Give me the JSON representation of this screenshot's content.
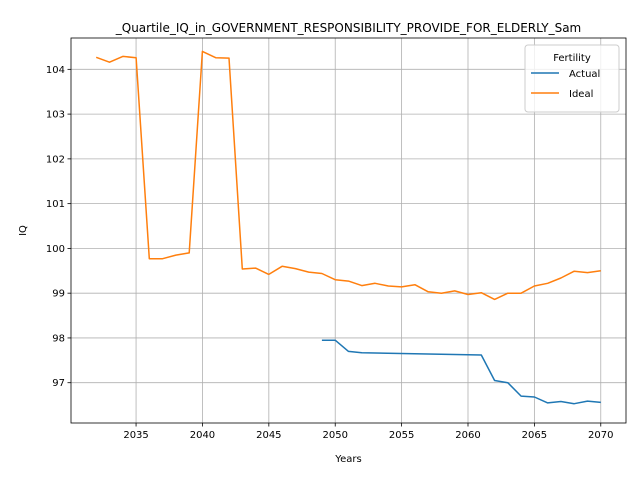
{
  "chart_data": {
    "type": "line",
    "title": "_Quartile_IQ_in_GOVERNMENT_RESPONSIBILITY_PROVIDE_FOR_ELDERLY_Sam",
    "xlabel": "Years",
    "ylabel": "IQ",
    "xlim": [
      2030.1,
      2071.9
    ],
    "ylim": [
      96.1,
      104.7
    ],
    "xticks": [
      2035,
      2040,
      2045,
      2050,
      2055,
      2060,
      2065,
      2070
    ],
    "yticks": [
      97,
      98,
      99,
      100,
      101,
      102,
      103,
      104
    ],
    "grid": true,
    "legend": {
      "title": "Fertility",
      "position": "top-right"
    },
    "series": [
      {
        "name": "Actual",
        "color": "#1f77b4",
        "x": [
          2049,
          2050,
          2051,
          2052,
          2061,
          2062,
          2063,
          2064,
          2065,
          2066,
          2067,
          2068,
          2069,
          2070
        ],
        "y": [
          97.95,
          97.95,
          97.7,
          97.67,
          97.62,
          97.05,
          97.0,
          96.7,
          96.68,
          96.55,
          96.58,
          96.53,
          96.59,
          96.56
        ]
      },
      {
        "name": "Ideal",
        "color": "#ff7f0e",
        "x": [
          2032,
          2033,
          2034,
          2035,
          2036,
          2037,
          2038,
          2039,
          2040,
          2041,
          2042,
          2043,
          2044,
          2045,
          2046,
          2047,
          2048,
          2049,
          2050,
          2051,
          2052,
          2053,
          2054,
          2055,
          2056,
          2057,
          2058,
          2059,
          2060,
          2061,
          2062,
          2063,
          2064,
          2065,
          2066,
          2067,
          2068,
          2069,
          2070
        ],
        "y": [
          104.27,
          104.16,
          104.29,
          104.26,
          99.77,
          99.77,
          99.85,
          99.9,
          104.4,
          104.26,
          104.25,
          99.54,
          99.56,
          99.42,
          99.6,
          99.55,
          99.47,
          99.44,
          99.3,
          99.27,
          99.17,
          99.22,
          99.16,
          99.14,
          99.19,
          99.03,
          99.0,
          99.05,
          98.97,
          99.01,
          98.86,
          99.0,
          99.0,
          99.16,
          99.22,
          99.34,
          99.49,
          99.46,
          99.5
        ]
      }
    ]
  }
}
